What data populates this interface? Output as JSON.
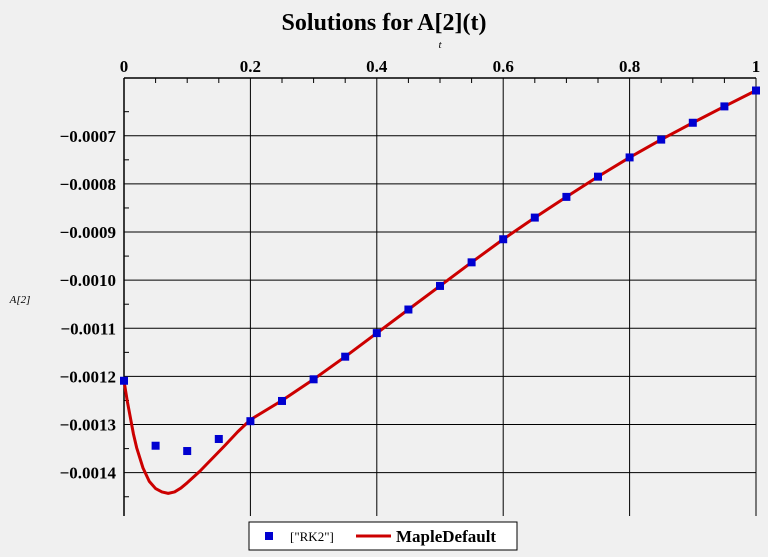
{
  "chart_data": {
    "type": "line",
    "title": "Solutions for A[2](t)",
    "xlabel": "t",
    "ylabel": "A[2]",
    "xlim": [
      0,
      1
    ],
    "ylim": [
      -0.00149,
      -0.00058
    ],
    "x_ticks": [
      0,
      0.2,
      0.4,
      0.6,
      0.8,
      1
    ],
    "x_tick_labels": [
      "0",
      "0.2",
      "0.4",
      "0.6",
      "0.8",
      "1"
    ],
    "y_ticks": [
      -0.0007,
      -0.0008,
      -0.0009,
      -0.001,
      -0.0011,
      -0.0012,
      -0.0013,
      -0.0014
    ],
    "y_tick_labels": [
      "−0.0007",
      "−0.0008",
      "−0.0009",
      "−0.0010",
      "−0.0011",
      "−0.0012",
      "−0.0013",
      "−0.0014"
    ],
    "x_axis_position": "top",
    "grid": true,
    "legend_position": "bottom",
    "series": [
      {
        "name": "[\"RK2\"]",
        "kind": "scatter",
        "marker": "square",
        "color": "#0000d0",
        "x": [
          0,
          0.05,
          0.1,
          0.15,
          0.2,
          0.25,
          0.3,
          0.35,
          0.4,
          0.45,
          0.5,
          0.55,
          0.6,
          0.65,
          0.7,
          0.75,
          0.8,
          0.85,
          0.9,
          0.95,
          1.0
        ],
        "y": [
          -0.001209,
          -0.001344,
          -0.001355,
          -0.00133,
          -0.001293,
          -0.001251,
          -0.001206,
          -0.001159,
          -0.00111,
          -0.001061,
          -0.001012,
          -0.000963,
          -0.000915,
          -0.00087,
          -0.000827,
          -0.000785,
          -0.000745,
          -0.000708,
          -0.000673,
          -0.000639,
          -0.000606
        ]
      },
      {
        "name": "MapleDefault",
        "kind": "line",
        "color": "#cc0000",
        "x": [
          0,
          0.005,
          0.01,
          0.015,
          0.02,
          0.03,
          0.04,
          0.05,
          0.06,
          0.07,
          0.08,
          0.09,
          0.1,
          0.12,
          0.14,
          0.16,
          0.18,
          0.2,
          0.25,
          0.3,
          0.35,
          0.4,
          0.45,
          0.5,
          0.55,
          0.6,
          0.65,
          0.7,
          0.75,
          0.8,
          0.85,
          0.9,
          0.95,
          1.0
        ],
        "y": [
          -0.001209,
          -0.00125,
          -0.001285,
          -0.00132,
          -0.001348,
          -0.00139,
          -0.001418,
          -0.001433,
          -0.00144,
          -0.001443,
          -0.00144,
          -0.001432,
          -0.001421,
          -0.001397,
          -0.00137,
          -0.001343,
          -0.001315,
          -0.00129,
          -0.00125,
          -0.001206,
          -0.001159,
          -0.00111,
          -0.001061,
          -0.001012,
          -0.000963,
          -0.000915,
          -0.00087,
          -0.000827,
          -0.000785,
          -0.000745,
          -0.000708,
          -0.000673,
          -0.000639,
          -0.000606
        ]
      }
    ]
  }
}
